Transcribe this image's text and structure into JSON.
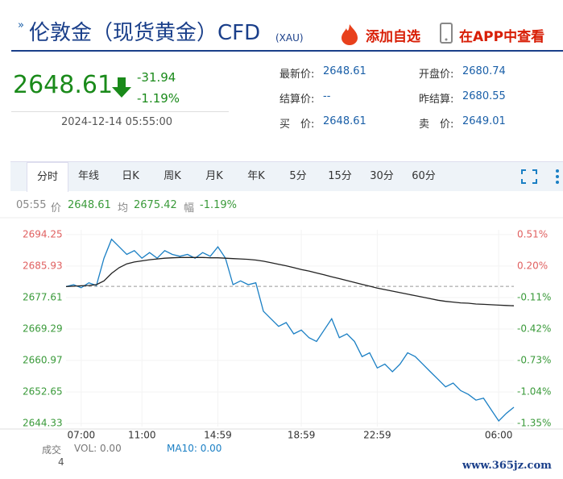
{
  "header": {
    "title": "伦敦金（现货黄金）CFD",
    "code": "(XAU)",
    "add": "添加自选",
    "app": "在APP中查看"
  },
  "quote": {
    "price": "2648.61",
    "change": "-31.94",
    "percent": "-1.19%",
    "time": "2024-12-14 05:55:00"
  },
  "fields": [
    {
      "label": "最新价:",
      "value": "2648.61"
    },
    {
      "label": "开盘价:",
      "value": "2680.74"
    },
    {
      "label": "结算价:",
      "value": "--"
    },
    {
      "label": "昨结算:",
      "value": "2680.55"
    },
    {
      "label": "买　价:",
      "value": "2648.61"
    },
    {
      "label": "卖　价:",
      "value": "2649.01"
    }
  ],
  "tabs": [
    "分时",
    "年线",
    "日K",
    "周K",
    "月K",
    "年K",
    "5分",
    "15分",
    "30分",
    "60分"
  ],
  "info": {
    "time": "05:55",
    "price_label": "价",
    "price": "2648.61",
    "avg_label": "均",
    "avg": "2675.42",
    "pct_label": "幅",
    "pct": "-1.19%"
  },
  "volume": {
    "label": "成交",
    "vol": "VOL: 0.00",
    "ma": "MA10: 0.00",
    "count": "4"
  },
  "watermark": "www.365jz.com",
  "chart_data": {
    "type": "line",
    "categories": [
      null,
      null,
      "07:00",
      null,
      null,
      null,
      null,
      null,
      null,
      null,
      "11:00",
      null,
      null,
      null,
      null,
      null,
      null,
      null,
      null,
      null,
      "14:59",
      null,
      null,
      null,
      null,
      null,
      null,
      null,
      null,
      null,
      null,
      "18:59",
      null,
      null,
      null,
      null,
      null,
      null,
      null,
      null,
      null,
      "22:59",
      null,
      null,
      null,
      null,
      null,
      null,
      null,
      null,
      null,
      null,
      null,
      null,
      null,
      null,
      null,
      "06:00",
      null,
      null
    ],
    "series": [
      {
        "name": "价",
        "color": "#1a7fc4",
        "values": [
          2680.5,
          2681,
          2680.2,
          2681.5,
          2680.8,
          2688,
          2693,
          2691,
          2689,
          2690,
          2688,
          2689.5,
          2688,
          2690,
          2689,
          2688.5,
          2689,
          2688,
          2689.5,
          2688.5,
          2691,
          2688,
          2681,
          2682,
          2681,
          2681.5,
          2674,
          2672,
          2670,
          2671,
          2668,
          2669,
          2667,
          2666,
          2669,
          2672,
          2667,
          2668,
          2666,
          2662,
          2663,
          2659,
          2660,
          2658,
          2660,
          2663,
          2662,
          2660,
          2658,
          2656,
          2654,
          2655,
          2653,
          2652,
          2650.5,
          2651,
          2648,
          2645,
          2647,
          2648.61
        ]
      },
      {
        "name": "均",
        "color": "#222222",
        "values": [
          2680.5,
          2680.6,
          2680.7,
          2680.8,
          2681,
          2682,
          2684,
          2685.5,
          2686.5,
          2687,
          2687.3,
          2687.6,
          2687.8,
          2688,
          2688.1,
          2688.2,
          2688.2,
          2688.2,
          2688.2,
          2688.1,
          2688.1,
          2688,
          2687.9,
          2687.8,
          2687.7,
          2687.5,
          2687.2,
          2686.8,
          2686.4,
          2686,
          2685.5,
          2685,
          2684.6,
          2684.1,
          2683.6,
          2683.1,
          2682.6,
          2682.1,
          2681.6,
          2681.1,
          2680.6,
          2680.1,
          2679.7,
          2679.3,
          2678.9,
          2678.5,
          2678.1,
          2677.7,
          2677.3,
          2676.9,
          2676.6,
          2676.4,
          2676.2,
          2676.1,
          2675.9,
          2675.8,
          2675.7,
          2675.6,
          2675.5,
          2675.42
        ]
      }
    ],
    "reference": 2680.55,
    "ylim": [
      2643.5,
      2695.5
    ],
    "yticks": [
      2694.25,
      2685.93,
      2677.61,
      2669.29,
      2660.97,
      2652.65,
      2644.33
    ],
    "y2lim": [
      -1.382,
      0.558
    ],
    "y2ticks": [
      {
        "value": 0.51,
        "label": "0.51%"
      },
      {
        "value": 0.2,
        "label": "0.20%"
      },
      {
        "value": -0.11,
        "label": "-0.11%"
      },
      {
        "value": -0.42,
        "label": "-0.42%"
      },
      {
        "value": -0.73,
        "label": "-0.73%"
      },
      {
        "value": -1.04,
        "label": "-1.04%"
      },
      {
        "value": -1.35,
        "label": "-1.35%"
      }
    ],
    "up_color": "#e06060",
    "down_color": "#3a9a3a",
    "grid": true
  }
}
